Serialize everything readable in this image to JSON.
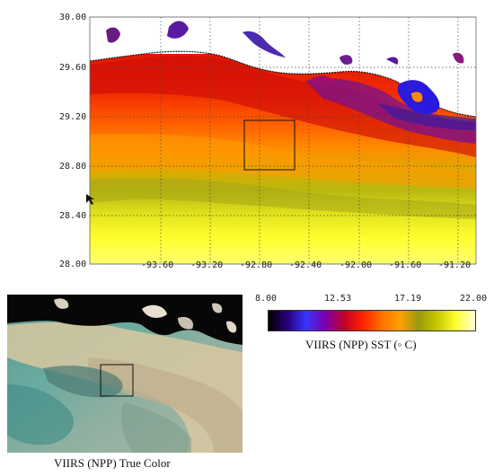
{
  "sst_map": {
    "y_ticks": [
      "30.00",
      "29.60",
      "29.20",
      "28.80",
      "28.40",
      "28.00"
    ],
    "x_ticks": [
      "-93.60",
      "-93.20",
      "-92.80",
      "-92.40",
      "-92.00",
      "-91.60",
      "-91.20"
    ],
    "grid": "dotted",
    "highlight_box": true
  },
  "colorbar": {
    "ticks": [
      "8.00",
      "12.53",
      "17.19",
      "22.00"
    ],
    "caption": "VIIRS (NPP) SST (◦ C)",
    "colors": [
      "#000000",
      "#2a007a",
      "#3a34ff",
      "#7a00b0",
      "#c0002a",
      "#ff2000",
      "#ff7000",
      "#ffa000",
      "#9a9a10",
      "#c8c800",
      "#ffff30",
      "#ffffd8"
    ]
  },
  "true_color": {
    "caption": "VIIRS (NPP) True Color",
    "highlight_box": true
  }
}
